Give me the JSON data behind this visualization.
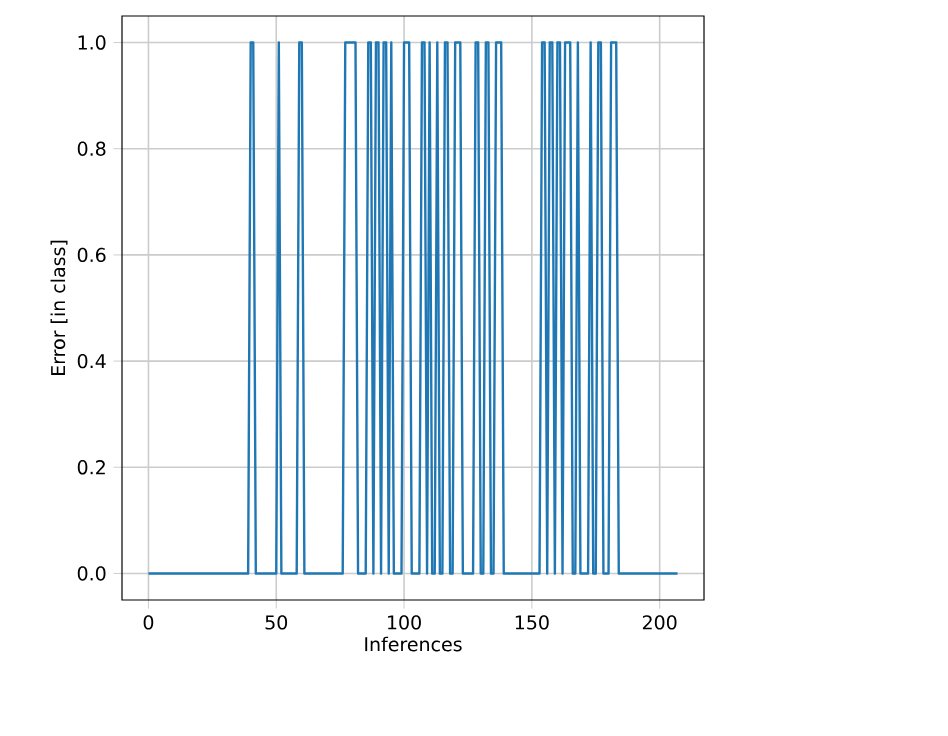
{
  "chart_data": {
    "type": "line",
    "xlabel": "Inferences",
    "ylabel": "Error [in class]",
    "x": [
      0,
      39,
      40,
      41,
      42,
      50,
      51,
      52,
      58,
      59,
      60,
      61,
      76,
      77,
      81,
      82,
      85,
      86,
      87,
      88,
      89,
      90,
      91,
      92,
      93,
      94,
      95,
      96,
      99,
      100,
      102,
      103,
      106,
      107,
      108,
      109,
      110,
      111,
      112,
      113,
      114,
      115,
      116,
      117,
      118,
      119,
      120,
      122,
      123,
      127,
      128,
      129,
      130,
      131,
      132,
      133,
      134,
      135,
      136,
      138,
      139,
      153,
      154,
      155,
      156,
      157,
      158,
      159,
      160,
      161,
      162,
      163,
      165,
      166,
      167,
      168,
      169,
      172,
      173,
      174,
      175,
      176,
      177,
      178,
      180,
      181,
      183,
      184,
      207
    ],
    "values": [
      0,
      0,
      1,
      1,
      0,
      0,
      1,
      0,
      0,
      1,
      1,
      0,
      0,
      1,
      1,
      0,
      0,
      1,
      1,
      0,
      1,
      1,
      0,
      1,
      1,
      0,
      1,
      0,
      0,
      1,
      1,
      0,
      0,
      1,
      1,
      0,
      1,
      0,
      0,
      1,
      0,
      0,
      1,
      1,
      0,
      0,
      1,
      1,
      0,
      0,
      1,
      1,
      0,
      0,
      1,
      1,
      0,
      0,
      1,
      1,
      0,
      0,
      1,
      1,
      0,
      1,
      1,
      0,
      1,
      1,
      0,
      1,
      1,
      0,
      0,
      1,
      0,
      0,
      1,
      0,
      0,
      1,
      1,
      0,
      0,
      1,
      1,
      0,
      0
    ],
    "color": "#1f77b4",
    "xlim": [
      -10.35,
      217.35
    ],
    "ylim": [
      -0.05,
      1.05
    ],
    "xticks": [
      0,
      50,
      100,
      150,
      200
    ],
    "yticks": [
      {
        "value": 0,
        "label": "0.0"
      },
      {
        "value": 0.2,
        "label": "0.2"
      },
      {
        "value": 0.4,
        "label": "0.4"
      },
      {
        "value": 0.6,
        "label": "0.6"
      },
      {
        "value": 0.8,
        "label": "0.8"
      },
      {
        "value": 1,
        "label": "1.0"
      }
    ],
    "grid": true
  }
}
